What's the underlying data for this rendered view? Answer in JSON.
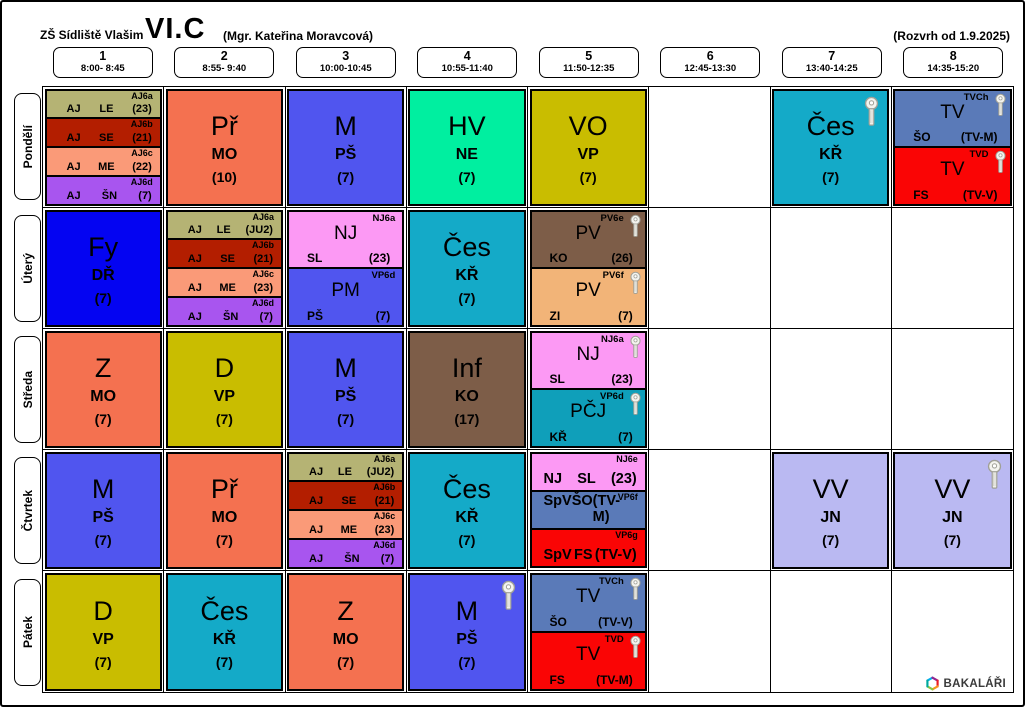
{
  "header": {
    "school": "ZŠ Sídliště Vlašim",
    "class_name": "VI.C",
    "class_teacher": "(Mgr. Kateřina Moravcová)",
    "valid_from": "(Rozvrh od 1.9.2025)"
  },
  "periods": [
    {
      "num": "1",
      "time": "8:00- 8:45"
    },
    {
      "num": "2",
      "time": "8:55- 9:40"
    },
    {
      "num": "3",
      "time": "10:00-10:45"
    },
    {
      "num": "4",
      "time": "10:55-11:40"
    },
    {
      "num": "5",
      "time": "11:50-12:35"
    },
    {
      "num": "6",
      "time": "12:45-13:30"
    },
    {
      "num": "7",
      "time": "13:40-14:25"
    },
    {
      "num": "8",
      "time": "14:35-15:20"
    }
  ],
  "days": [
    "Pondělí",
    "Úterý",
    "Středa",
    "Čtvrtek",
    "Pátek"
  ],
  "colors": {
    "khaki": "#b5b374",
    "darkred": "#b31e00",
    "salmon": "#fa9a78",
    "purple": "#a855ef",
    "orange": "#f47150",
    "blue": "#5055ef",
    "green": "#00efa0",
    "olive": "#c9bd00",
    "cyan": "#14aac8",
    "blue2": "#0404f2",
    "pink": "#fc99f4",
    "brown": "#7d5d48",
    "tan": "#f2b478",
    "teal": "#0f9fba",
    "steel": "#5a7ab8",
    "red": "#fa0505",
    "lavender": "#bab9f2"
  },
  "logo": {
    "label": "BAKALÁŘI",
    "icon": "bakalari-hexagon-icon"
  },
  "key_icon_meaning": "key-icon",
  "timetable": [
    [
      {
        "type": "quarters",
        "segments": [
          {
            "group": "AJ6a",
            "subject": "AJ",
            "teacher": "LE",
            "room": "(23)",
            "color": "khaki"
          },
          {
            "group": "AJ6b",
            "subject": "AJ",
            "teacher": "SE",
            "room": "(21)",
            "color": "darkred"
          },
          {
            "group": "AJ6c",
            "subject": "AJ",
            "teacher": "ME",
            "room": "(22)",
            "color": "salmon"
          },
          {
            "group": "AJ6d",
            "subject": "AJ",
            "teacher": "ŠN",
            "room": "(7)",
            "color": "purple"
          }
        ]
      },
      {
        "type": "single",
        "segments": [
          {
            "subject": "Př",
            "teacher": "MO",
            "room": "(10)",
            "color": "orange"
          }
        ]
      },
      {
        "type": "single",
        "segments": [
          {
            "subject": "M",
            "teacher": "PŠ",
            "room": "(7)",
            "color": "blue"
          }
        ]
      },
      {
        "type": "single",
        "segments": [
          {
            "subject": "HV",
            "teacher": "NE",
            "room": "(7)",
            "color": "green"
          }
        ]
      },
      {
        "type": "single",
        "segments": [
          {
            "subject": "VO",
            "teacher": "VP",
            "room": "(7)",
            "color": "olive"
          }
        ]
      },
      null,
      {
        "type": "single",
        "segments": [
          {
            "subject": "Čes",
            "teacher": "KŘ",
            "room": "(7)",
            "color": "cyan",
            "key": true
          }
        ]
      },
      {
        "type": "halves",
        "segments": [
          {
            "group": "TVCh",
            "subject": "TV",
            "teacher": "ŠO",
            "room": "(TV-M)",
            "color": "steel",
            "key": true
          },
          {
            "group": "TVD",
            "subject": "TV",
            "teacher": "FS",
            "room": "(TV-V)",
            "color": "red",
            "key": true
          }
        ]
      }
    ],
    [
      {
        "type": "single",
        "segments": [
          {
            "subject": "Fy",
            "teacher": "DŘ",
            "room": "(7)",
            "color": "blue2"
          }
        ]
      },
      {
        "type": "quarters",
        "segments": [
          {
            "group": "AJ6a",
            "subject": "AJ",
            "teacher": "LE",
            "room": "(JU2)",
            "color": "khaki"
          },
          {
            "group": "AJ6b",
            "subject": "AJ",
            "teacher": "SE",
            "room": "(21)",
            "color": "darkred"
          },
          {
            "group": "AJ6c",
            "subject": "AJ",
            "teacher": "ME",
            "room": "(23)",
            "color": "salmon"
          },
          {
            "group": "AJ6d",
            "subject": "AJ",
            "teacher": "ŠN",
            "room": "(7)",
            "color": "purple"
          }
        ]
      },
      {
        "type": "halves",
        "segments": [
          {
            "group": "NJ6a",
            "subject": "NJ",
            "teacher": "SL",
            "room": "(23)",
            "color": "pink"
          },
          {
            "group": "VP6d",
            "subject": "PM",
            "teacher": "PŠ",
            "room": "(7)",
            "color": "blue"
          }
        ]
      },
      {
        "type": "single",
        "segments": [
          {
            "subject": "Čes",
            "teacher": "KŘ",
            "room": "(7)",
            "color": "cyan"
          }
        ]
      },
      {
        "type": "halves",
        "segments": [
          {
            "group": "PV6e",
            "subject": "PV",
            "teacher": "KO",
            "room": "(26)",
            "color": "brown",
            "key": true
          },
          {
            "group": "PV6f",
            "subject": "PV",
            "teacher": "ZI",
            "room": "(7)",
            "color": "tan",
            "key": true
          }
        ]
      },
      null,
      null,
      null
    ],
    [
      {
        "type": "single",
        "segments": [
          {
            "subject": "Z",
            "teacher": "MO",
            "room": "(7)",
            "color": "orange"
          }
        ]
      },
      {
        "type": "single",
        "segments": [
          {
            "subject": "D",
            "teacher": "VP",
            "room": "(7)",
            "color": "olive"
          }
        ]
      },
      {
        "type": "single",
        "segments": [
          {
            "subject": "M",
            "teacher": "PŠ",
            "room": "(7)",
            "color": "blue"
          }
        ]
      },
      {
        "type": "single",
        "segments": [
          {
            "subject": "Inf",
            "teacher": "KO",
            "room": "(17)",
            "color": "brown"
          }
        ]
      },
      {
        "type": "halves",
        "segments": [
          {
            "group": "NJ6a",
            "subject": "NJ",
            "teacher": "SL",
            "room": "(23)",
            "color": "pink",
            "key": true
          },
          {
            "group": "VP6d",
            "subject": "PČJ",
            "teacher": "KŘ",
            "room": "(7)",
            "color": "teal",
            "key": true
          }
        ]
      },
      null,
      null,
      null
    ],
    [
      {
        "type": "single",
        "segments": [
          {
            "subject": "M",
            "teacher": "PŠ",
            "room": "(7)",
            "color": "blue"
          }
        ]
      },
      {
        "type": "single",
        "segments": [
          {
            "subject": "Př",
            "teacher": "MO",
            "room": "(7)",
            "color": "orange"
          }
        ]
      },
      {
        "type": "quarters",
        "segments": [
          {
            "group": "AJ6a",
            "subject": "AJ",
            "teacher": "LE",
            "room": "(JU2)",
            "color": "khaki"
          },
          {
            "group": "AJ6b",
            "subject": "AJ",
            "teacher": "SE",
            "room": "(21)",
            "color": "darkred"
          },
          {
            "group": "AJ6c",
            "subject": "AJ",
            "teacher": "ME",
            "room": "(23)",
            "color": "salmon"
          },
          {
            "group": "AJ6d",
            "subject": "AJ",
            "teacher": "ŠN",
            "room": "(7)",
            "color": "purple"
          }
        ]
      },
      {
        "type": "single",
        "segments": [
          {
            "subject": "Čes",
            "teacher": "KŘ",
            "room": "(7)",
            "color": "cyan"
          }
        ]
      },
      {
        "type": "thirds",
        "segments": [
          {
            "group": "NJ6e",
            "subject": "NJ",
            "teacher": "SL",
            "room": "(23)",
            "color": "pink"
          },
          {
            "group": "VP6f",
            "subject": "SpV",
            "teacher": "ŠO",
            "room": "(TV-M)",
            "color": "steel"
          },
          {
            "group": "VP6g",
            "subject": "SpV",
            "teacher": "FS",
            "room": "(TV-V)",
            "color": "red"
          }
        ]
      },
      null,
      {
        "type": "single",
        "segments": [
          {
            "subject": "VV",
            "teacher": "JN",
            "room": "(7)",
            "color": "lavender"
          }
        ]
      },
      {
        "type": "single",
        "segments": [
          {
            "subject": "VV",
            "teacher": "JN",
            "room": "(7)",
            "color": "lavender",
            "key": true
          }
        ]
      }
    ],
    [
      {
        "type": "single",
        "segments": [
          {
            "subject": "D",
            "teacher": "VP",
            "room": "(7)",
            "color": "olive"
          }
        ]
      },
      {
        "type": "single",
        "segments": [
          {
            "subject": "Čes",
            "teacher": "KŘ",
            "room": "(7)",
            "color": "cyan"
          }
        ]
      },
      {
        "type": "single",
        "segments": [
          {
            "subject": "Z",
            "teacher": "MO",
            "room": "(7)",
            "color": "orange"
          }
        ]
      },
      {
        "type": "single",
        "segments": [
          {
            "subject": "M",
            "teacher": "PŠ",
            "room": "(7)",
            "color": "blue",
            "key": true
          }
        ]
      },
      {
        "type": "halves",
        "segments": [
          {
            "group": "TVCh",
            "subject": "TV",
            "teacher": "ŠO",
            "room": "(TV-V)",
            "color": "steel",
            "key": true
          },
          {
            "group": "TVD",
            "subject": "TV",
            "teacher": "FS",
            "room": "(TV-M)",
            "color": "red",
            "key": true
          }
        ]
      },
      null,
      null,
      null
    ]
  ]
}
